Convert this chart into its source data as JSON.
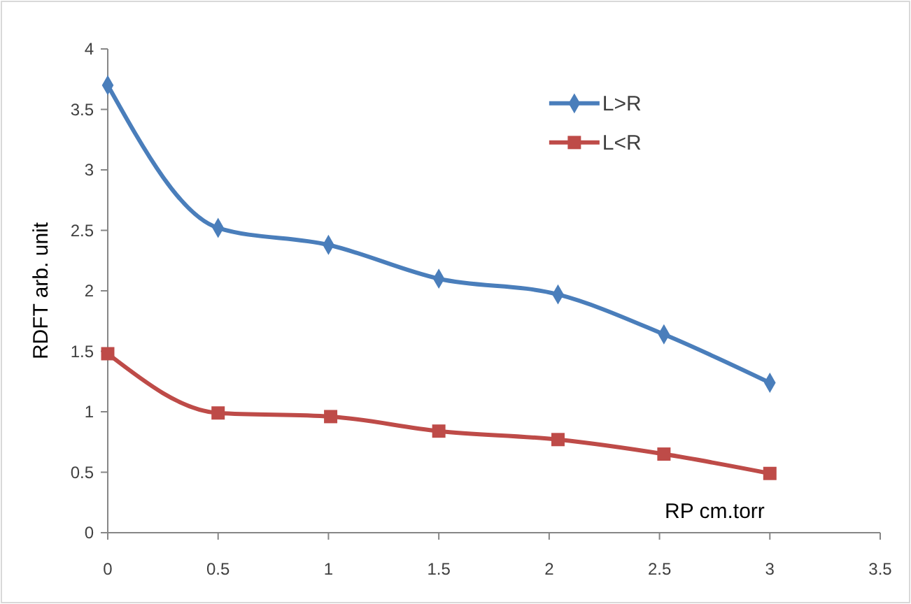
{
  "chart_data": {
    "type": "line",
    "xlabel": "RP cm.torr",
    "ylabel": "RDFT  arb. unit",
    "xlim": [
      0,
      3.5
    ],
    "xticks": [
      0,
      0.5,
      1,
      1.5,
      2,
      2.5,
      3,
      3.5
    ],
    "ylim": [
      0,
      4
    ],
    "yticks": [
      0,
      0.5,
      1,
      1.5,
      2,
      2.5,
      3,
      3.5,
      4
    ],
    "grid": false,
    "legend": "top right",
    "series": [
      {
        "name": "L>R",
        "color": "#4a7ebb",
        "marker": "diamond",
        "x": [
          0,
          0.5,
          1,
          1.5,
          2.04,
          2.52,
          3
        ],
        "values": [
          3.7,
          2.52,
          2.38,
          2.1,
          1.97,
          1.64,
          1.24
        ]
      },
      {
        "name": "L<R",
        "color": "#be4b48",
        "marker": "square",
        "x": [
          0,
          0.5,
          1.01,
          1.5,
          2.04,
          2.52,
          3
        ],
        "values": [
          1.48,
          0.99,
          0.96,
          0.84,
          0.77,
          0.65,
          0.49
        ]
      }
    ]
  }
}
